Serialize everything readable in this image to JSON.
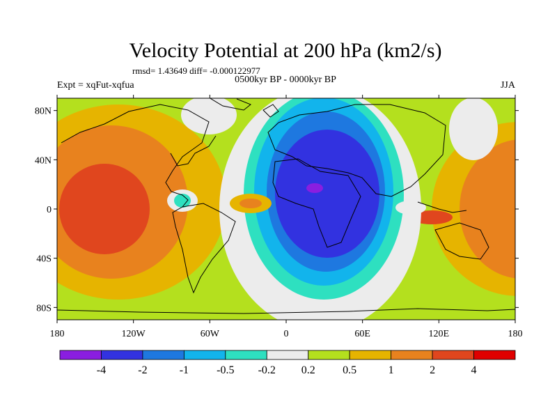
{
  "figure": {
    "title": "Velocity Potential at 200 hPa (km2/s)",
    "stats": "rmsd= 1.43649 diff= -0.000122977",
    "left_label": "Expt = xqFut-xqfua",
    "center_label": "0500kyr BP - 0000kyr BP",
    "right_label": "JJA"
  },
  "map": {
    "lon_range": [
      -180,
      180
    ],
    "lat_range": [
      -90,
      90
    ],
    "lat_ticks": [
      {
        "value": 80,
        "label": "80N"
      },
      {
        "value": 40,
        "label": "40N"
      },
      {
        "value": 0,
        "label": "0"
      },
      {
        "value": -40,
        "label": "40S"
      },
      {
        "value": -80,
        "label": "80S"
      }
    ],
    "lon_ticks": [
      {
        "value": -180,
        "label": "180"
      },
      {
        "value": -120,
        "label": "120W"
      },
      {
        "value": -60,
        "label": "60W"
      },
      {
        "value": 0,
        "label": "0"
      },
      {
        "value": 60,
        "label": "60E"
      },
      {
        "value": 120,
        "label": "120E"
      },
      {
        "value": 180,
        "label": "180"
      }
    ]
  },
  "colorbar": {
    "colors": [
      "#8a1ee0",
      "#3232e0",
      "#1e78e0",
      "#12b4ec",
      "#2ee0c0",
      "#ececec",
      "#b4e01e",
      "#e6b400",
      "#e8821e",
      "#e0461e",
      "#e00000"
    ],
    "labels": [
      "-4",
      "-2",
      "-1",
      "-0.5",
      "-0.2",
      "0.2",
      "0.5",
      "1",
      "2",
      "4"
    ]
  }
}
